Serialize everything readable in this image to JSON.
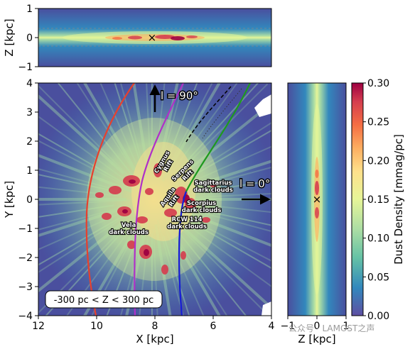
{
  "colors": {
    "background": "#4a4f9e",
    "gradient_stops": [
      "#5e4fa2",
      "#3288bd",
      "#66c2a5",
      "#abdda4",
      "#e6f598",
      "#fee08b",
      "#fdae61",
      "#f46d43",
      "#d53e4f",
      "#9e0142"
    ],
    "curve_red": "#e8402c",
    "curve_purple": "#b030c8",
    "curve_green": "#1e9a1e",
    "curve_blue": "#1a1adb"
  },
  "chart_data": [
    {
      "panel": "top",
      "type": "heatmap",
      "ylabel": "Z [kpc]",
      "xlim": [
        12,
        4
      ],
      "ylim": [
        -1,
        1
      ],
      "yticks": [
        "1",
        "0",
        "−1"
      ],
      "sun_marker": {
        "x": 8.1,
        "z": 0.0,
        "symbol": "×"
      }
    },
    {
      "panel": "main",
      "type": "heatmap",
      "xlabel": "X [kpc]",
      "ylabel": "Y [kpc]",
      "xlim": [
        12,
        4
      ],
      "ylim": [
        -4,
        4
      ],
      "xticks": [
        "12",
        "10",
        "8",
        "6",
        "4"
      ],
      "yticks": [
        "4",
        "3",
        "2",
        "1",
        "0",
        "−1",
        "−2",
        "−3",
        "−4"
      ],
      "box_text": "-300 pc < Z < 300 pc",
      "arrows": [
        {
          "label": "l = 90°",
          "direction": "up"
        },
        {
          "label": "l = 0°",
          "direction": "right"
        }
      ],
      "annotations": [
        {
          "text": "Cygnus Rift",
          "x": 7.7,
          "y": 1.25
        },
        {
          "text": "Serpens Rift",
          "x": 7.0,
          "y": 0.95
        },
        {
          "text": "Sagittarius dark clouds",
          "x": 6.0,
          "y": 0.5
        },
        {
          "text": "Aquila Rift",
          "x": 7.5,
          "y": 0.05
        },
        {
          "text": "Scorpius dark clouds",
          "x": 6.4,
          "y": -0.2
        },
        {
          "text": "RCW 114 dark clouds",
          "x": 6.9,
          "y": -0.75
        },
        {
          "text": "Vela dark clouds",
          "x": 8.9,
          "y": -0.95
        }
      ]
    },
    {
      "panel": "right",
      "type": "heatmap",
      "xlabel": "Z [kpc]",
      "xlim": [
        -1,
        1
      ],
      "xticks": [
        "−1",
        "0",
        "1"
      ],
      "sun_marker": {
        "x": 0.0,
        "y": 0.0,
        "symbol": "×"
      }
    },
    {
      "panel": "colorbar",
      "type": "heatmap",
      "label": "Dust Density [mmag/pc]",
      "range": [
        0,
        0.3
      ],
      "ticks": [
        "0.30",
        "0.25",
        "0.20",
        "0.15",
        "0.10",
        "0.05",
        "0.00"
      ]
    }
  ],
  "watermark": "公众号 · LAMOST之声"
}
